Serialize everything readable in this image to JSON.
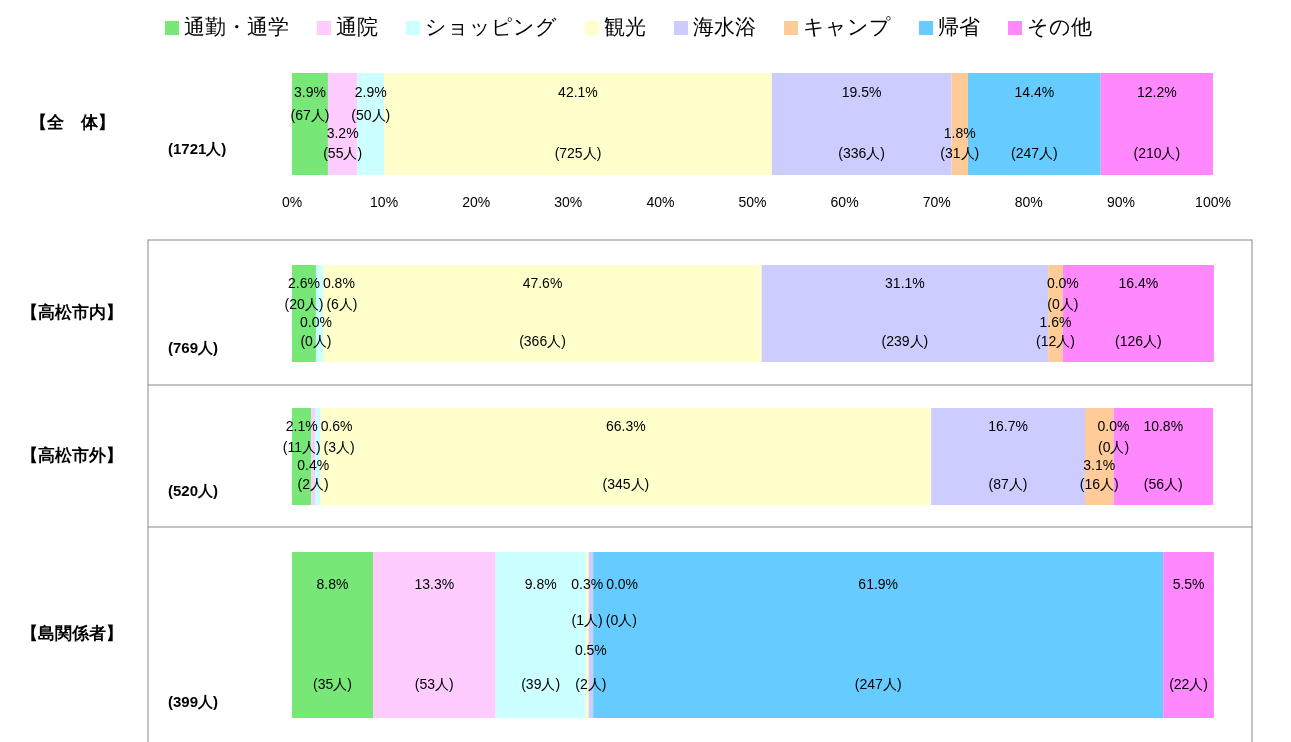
{
  "chart_data": {
    "type": "bar",
    "orientation": "horizontal",
    "stacked": true,
    "legend": "top",
    "categories": [
      "【全　体】",
      "【高松市内】",
      "【高松市外】",
      "【島関係者】"
    ],
    "annotations": [
      "(1721人)",
      "(769人)",
      "(520人)",
      "(399人)"
    ],
    "xlim": [
      0,
      100
    ],
    "xticks": [
      {
        "value": 0,
        "label": "0%"
      },
      {
        "value": 10,
        "label": "10%"
      },
      {
        "value": 20,
        "label": "20%"
      },
      {
        "value": 30,
        "label": "30%"
      },
      {
        "value": 40,
        "label": "40%"
      },
      {
        "value": 50,
        "label": "50%"
      },
      {
        "value": 60,
        "label": "60%"
      },
      {
        "value": 70,
        "label": "70%"
      },
      {
        "value": 80,
        "label": "80%"
      },
      {
        "value": 90,
        "label": "90%"
      },
      {
        "value": 100,
        "label": "100%"
      }
    ],
    "series": [
      {
        "name": "通勤・通学",
        "color": "#77e877",
        "values": [
          3.9,
          2.6,
          2.1,
          8.8
        ],
        "value_labels": [
          "3.9%\n(67人)",
          "2.6%\n(20人)",
          "2.1%\n(11人)",
          "8.8%\n(35人)"
        ]
      },
      {
        "name": "通院",
        "color": "#ffccff",
        "values": [
          3.2,
          0.0,
          0.4,
          13.3
        ],
        "value_labels": [
          "3.2%\n(55人)",
          "0.0%\n(0人)",
          "0.4%\n(2人)",
          "13.3%\n(53人)"
        ]
      },
      {
        "name": "ショッピング",
        "color": "#ccffff",
        "values": [
          2.9,
          0.8,
          0.6,
          9.8
        ],
        "value_labels": [
          "2.9%\n(50人)",
          "0.8%\n(6人)",
          "0.6%\n(3人)",
          "9.8%\n(39人)"
        ]
      },
      {
        "name": "観光",
        "color": "#ffffcc",
        "values": [
          42.1,
          47.6,
          66.3,
          0.3
        ],
        "value_labels": [
          "42.1%\n(725人)",
          "47.6%\n(366人)",
          "66.3%\n(345人)",
          "0.3%\n(1人)"
        ]
      },
      {
        "name": "海水浴",
        "color": "#ccccff",
        "values": [
          19.5,
          31.1,
          16.7,
          0.5
        ],
        "value_labels": [
          "19.5%\n(336人)",
          "31.1%\n(239人)",
          "16.7%\n(87人)",
          "0.5%\n(2人)"
        ]
      },
      {
        "name": "キャンプ",
        "color": "#ffcc99",
        "values": [
          1.8,
          1.6,
          3.1,
          0.0
        ],
        "value_labels": [
          "1.8%\n(31人)",
          "1.6%\n(12人)",
          "3.1%\n(16人)",
          "0.0%\n(0人)"
        ]
      },
      {
        "name": "帰省",
        "color": "#66ccff",
        "values": [
          14.4,
          0.0,
          0.0,
          61.9
        ],
        "value_labels": [
          "14.4%\n(247人)",
          "0.0%\n(0人)",
          "0.0%\n(0人)",
          "61.9%\n(247人)"
        ]
      },
      {
        "name": "その他",
        "color": "#ff88ff",
        "values": [
          12.2,
          16.4,
          10.8,
          5.5
        ],
        "value_labels": [
          "12.2%\n(210人)",
          "16.4%\n(126人)",
          "10.8%\n(56人)",
          "5.5%\n(22人)"
        ]
      }
    ]
  }
}
